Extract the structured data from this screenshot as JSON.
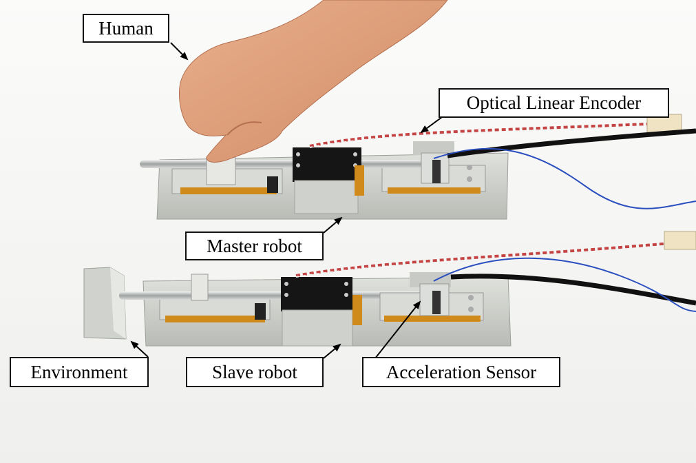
{
  "labels": {
    "human": "Human",
    "optical_linear_encoder": "Optical Linear Encoder",
    "master_robot": "Master robot",
    "environment": "Environment",
    "slave_robot": "Slave robot",
    "acceleration_sensor": "Acceleration Sensor"
  },
  "colors": {
    "background": "#f2f2f0",
    "aluminum": "#c9ccc6",
    "black_block": "#151515",
    "kapton_amber": "#d08a1c",
    "cable_black": "#111111",
    "cable_blue": "#2b4fbf",
    "skin": "#e2a27c"
  }
}
